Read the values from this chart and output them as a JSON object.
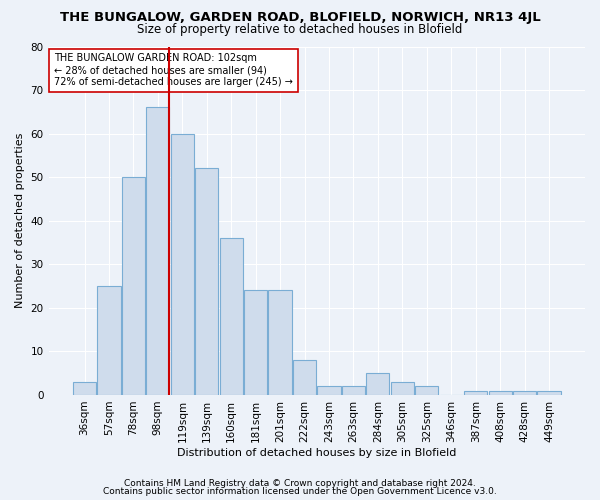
{
  "title": "THE BUNGALOW, GARDEN ROAD, BLOFIELD, NORWICH, NR13 4JL",
  "subtitle": "Size of property relative to detached houses in Blofield",
  "xlabel": "Distribution of detached houses by size in Blofield",
  "ylabel": "Number of detached properties",
  "categories": [
    "36sqm",
    "57sqm",
    "78sqm",
    "98sqm",
    "119sqm",
    "139sqm",
    "160sqm",
    "181sqm",
    "201sqm",
    "222sqm",
    "243sqm",
    "263sqm",
    "284sqm",
    "305sqm",
    "325sqm",
    "346sqm",
    "387sqm",
    "408sqm",
    "428sqm",
    "449sqm"
  ],
  "values": [
    3,
    25,
    50,
    66,
    60,
    52,
    36,
    24,
    24,
    8,
    2,
    2,
    5,
    3,
    2,
    0,
    1,
    1,
    1,
    1
  ],
  "bar_color": "#cfdcec",
  "bar_edge_color": "#7aadd4",
  "ylim": [
    0,
    80
  ],
  "yticks": [
    0,
    10,
    20,
    30,
    40,
    50,
    60,
    70,
    80
  ],
  "ref_line_index": 3,
  "ref_line_color": "#cc0000",
  "annotation_text": "THE BUNGALOW GARDEN ROAD: 102sqm\n← 28% of detached houses are smaller (94)\n72% of semi-detached houses are larger (245) →",
  "annotation_box_color": "#ffffff",
  "annotation_box_edge": "#cc0000",
  "footer_line1": "Contains HM Land Registry data © Crown copyright and database right 2024.",
  "footer_line2": "Contains public sector information licensed under the Open Government Licence v3.0.",
  "background_color": "#edf2f9",
  "title_fontsize": 9.5,
  "subtitle_fontsize": 8.5,
  "axis_label_fontsize": 8,
  "tick_fontsize": 7.5,
  "annotation_fontsize": 7,
  "footer_fontsize": 6.5
}
